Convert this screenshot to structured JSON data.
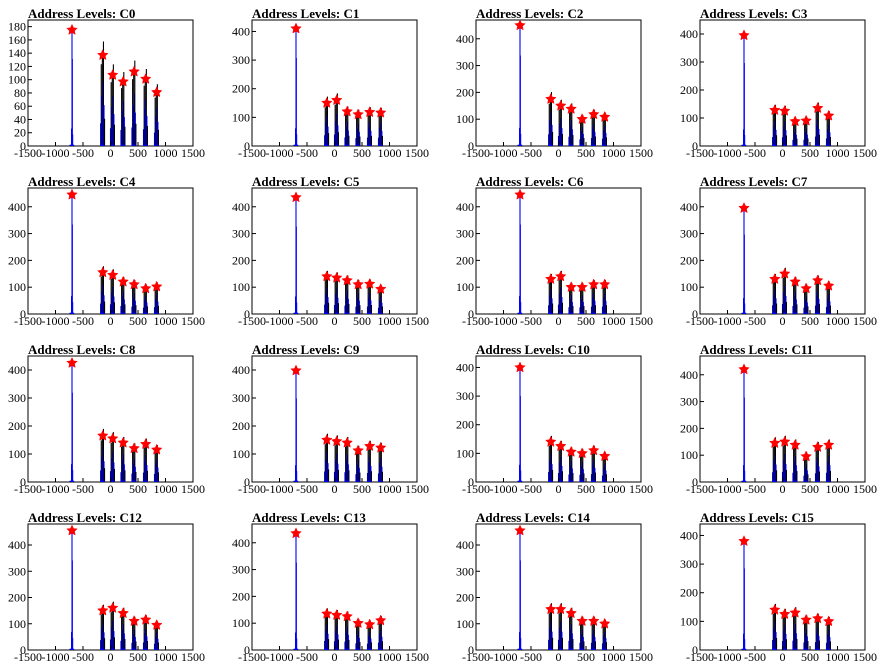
{
  "page": {
    "colors": {
      "background": "#ffffff",
      "spectrum": "#0000ff",
      "peak_marker": "#ff0000",
      "axis": "#000000"
    }
  },
  "chart_data": [
    {
      "type": "histogram",
      "title": "Address Levels: C0",
      "xlim": [
        -1500,
        1500
      ],
      "ylim": [
        0,
        190
      ],
      "x_ticks": [
        "-1500",
        "-1000",
        "-500",
        "0",
        "500",
        "1000",
        "1500"
      ],
      "y_ticks": [
        "0",
        "20",
        "40",
        "60",
        "80",
        "100",
        "120",
        "140",
        "160",
        "180"
      ],
      "peaks": [
        {
          "x": -700,
          "y": 175
        },
        {
          "x": -140,
          "y": 137
        },
        {
          "x": 40,
          "y": 107
        },
        {
          "x": 230,
          "y": 97
        },
        {
          "x": 430,
          "y": 112
        },
        {
          "x": 640,
          "y": 101
        },
        {
          "x": 840,
          "y": 81
        }
      ]
    },
    {
      "type": "histogram",
      "title": "Address Levels: C1",
      "xlim": [
        -1500,
        1500
      ],
      "ylim": [
        0,
        440
      ],
      "x_ticks": [
        "-1500",
        "-1000",
        "-500",
        "0",
        "500",
        "1000",
        "1500"
      ],
      "y_ticks": [
        "0",
        "100",
        "200",
        "300",
        "400"
      ],
      "peaks": [
        {
          "x": -700,
          "y": 410
        },
        {
          "x": -140,
          "y": 150
        },
        {
          "x": 40,
          "y": 160
        },
        {
          "x": 230,
          "y": 120
        },
        {
          "x": 430,
          "y": 110
        },
        {
          "x": 640,
          "y": 118
        },
        {
          "x": 840,
          "y": 116
        }
      ]
    },
    {
      "type": "histogram",
      "title": "Address Levels: C2",
      "xlim": [
        -1500,
        1500
      ],
      "ylim": [
        0,
        470
      ],
      "x_ticks": [
        "-1500",
        "-1000",
        "-500",
        "0",
        "500",
        "1000",
        "1500"
      ],
      "y_ticks": [
        "0",
        "100",
        "200",
        "300",
        "400"
      ],
      "peaks": [
        {
          "x": -700,
          "y": 450
        },
        {
          "x": -140,
          "y": 175
        },
        {
          "x": 40,
          "y": 150
        },
        {
          "x": 230,
          "y": 138
        },
        {
          "x": 430,
          "y": 100
        },
        {
          "x": 640,
          "y": 118
        },
        {
          "x": 840,
          "y": 108
        }
      ]
    },
    {
      "type": "histogram",
      "title": "Address Levels: C3",
      "xlim": [
        -1500,
        1500
      ],
      "ylim": [
        0,
        450
      ],
      "x_ticks": [
        "-1500",
        "-1000",
        "-500",
        "0",
        "500",
        "1000",
        "1500"
      ],
      "y_ticks": [
        "0",
        "100",
        "200",
        "300",
        "400"
      ],
      "peaks": [
        {
          "x": -700,
          "y": 395
        },
        {
          "x": -140,
          "y": 128
        },
        {
          "x": 40,
          "y": 125
        },
        {
          "x": 230,
          "y": 88
        },
        {
          "x": 430,
          "y": 90
        },
        {
          "x": 640,
          "y": 135
        },
        {
          "x": 840,
          "y": 108
        }
      ]
    },
    {
      "type": "histogram",
      "title": "Address Levels: C4",
      "xlim": [
        -1500,
        1500
      ],
      "ylim": [
        0,
        470
      ],
      "x_ticks": [
        "-1500",
        "-1000",
        "-500",
        "0",
        "500",
        "1000",
        "1500"
      ],
      "y_ticks": [
        "0",
        "100",
        "200",
        "300",
        "400"
      ],
      "peaks": [
        {
          "x": -700,
          "y": 445
        },
        {
          "x": -140,
          "y": 155
        },
        {
          "x": 40,
          "y": 145
        },
        {
          "x": 230,
          "y": 120
        },
        {
          "x": 430,
          "y": 110
        },
        {
          "x": 640,
          "y": 95
        },
        {
          "x": 840,
          "y": 102
        }
      ]
    },
    {
      "type": "histogram",
      "title": "Address Levels: C5",
      "xlim": [
        -1500,
        1500
      ],
      "ylim": [
        0,
        470
      ],
      "x_ticks": [
        "-1500",
        "-1000",
        "-500",
        "0",
        "500",
        "1000",
        "1500"
      ],
      "y_ticks": [
        "0",
        "100",
        "200",
        "300",
        "400"
      ],
      "peaks": [
        {
          "x": -700,
          "y": 435
        },
        {
          "x": -140,
          "y": 140
        },
        {
          "x": 40,
          "y": 135
        },
        {
          "x": 230,
          "y": 125
        },
        {
          "x": 430,
          "y": 110
        },
        {
          "x": 640,
          "y": 112
        },
        {
          "x": 840,
          "y": 93
        }
      ]
    },
    {
      "type": "histogram",
      "title": "Address Levels: C6",
      "xlim": [
        -1500,
        1500
      ],
      "ylim": [
        0,
        470
      ],
      "x_ticks": [
        "-1500",
        "-1000",
        "-500",
        "0",
        "500",
        "1000",
        "1500"
      ],
      "y_ticks": [
        "0",
        "100",
        "200",
        "300",
        "400"
      ],
      "peaks": [
        {
          "x": -700,
          "y": 445
        },
        {
          "x": -140,
          "y": 130
        },
        {
          "x": 40,
          "y": 140
        },
        {
          "x": 230,
          "y": 100
        },
        {
          "x": 430,
          "y": 100
        },
        {
          "x": 640,
          "y": 110
        },
        {
          "x": 840,
          "y": 110
        }
      ]
    },
    {
      "type": "histogram",
      "title": "Address Levels: C7",
      "xlim": [
        -1500,
        1500
      ],
      "ylim": [
        0,
        470
      ],
      "x_ticks": [
        "-1500",
        "-1000",
        "-500",
        "0",
        "500",
        "1000",
        "1500"
      ],
      "y_ticks": [
        "0",
        "100",
        "200",
        "300",
        "400"
      ],
      "peaks": [
        {
          "x": -700,
          "y": 395
        },
        {
          "x": -140,
          "y": 130
        },
        {
          "x": 40,
          "y": 150
        },
        {
          "x": 230,
          "y": 120
        },
        {
          "x": 430,
          "y": 95
        },
        {
          "x": 640,
          "y": 125
        },
        {
          "x": 840,
          "y": 105
        }
      ]
    },
    {
      "type": "histogram",
      "title": "Address Levels: C8",
      "xlim": [
        -1500,
        1500
      ],
      "ylim": [
        0,
        450
      ],
      "x_ticks": [
        "-1500",
        "-1000",
        "-500",
        "0",
        "500",
        "1000",
        "1500"
      ],
      "y_ticks": [
        "0",
        "100",
        "200",
        "300",
        "400"
      ],
      "peaks": [
        {
          "x": -700,
          "y": 425
        },
        {
          "x": -140,
          "y": 165
        },
        {
          "x": 40,
          "y": 155
        },
        {
          "x": 230,
          "y": 140
        },
        {
          "x": 430,
          "y": 120
        },
        {
          "x": 640,
          "y": 135
        },
        {
          "x": 840,
          "y": 115
        }
      ]
    },
    {
      "type": "histogram",
      "title": "Address Levels: C9",
      "xlim": [
        -1500,
        1500
      ],
      "ylim": [
        0,
        450
      ],
      "x_ticks": [
        "-1500",
        "-1000",
        "-500",
        "0",
        "500",
        "1000",
        "1500"
      ],
      "y_ticks": [
        "0",
        "100",
        "200",
        "300",
        "400"
      ],
      "peaks": [
        {
          "x": -700,
          "y": 398
        },
        {
          "x": -140,
          "y": 150
        },
        {
          "x": 40,
          "y": 145
        },
        {
          "x": 230,
          "y": 140
        },
        {
          "x": 430,
          "y": 112
        },
        {
          "x": 640,
          "y": 128
        },
        {
          "x": 840,
          "y": 122
        }
      ]
    },
    {
      "type": "histogram",
      "title": "Address Levels: C10",
      "xlim": [
        -1500,
        1500
      ],
      "ylim": [
        0,
        440
      ],
      "x_ticks": [
        "-1500",
        "-1000",
        "-500",
        "0",
        "500",
        "1000",
        "1500"
      ],
      "y_ticks": [
        "0",
        "100",
        "200",
        "300",
        "400"
      ],
      "peaks": [
        {
          "x": -700,
          "y": 400
        },
        {
          "x": -140,
          "y": 140
        },
        {
          "x": 40,
          "y": 125
        },
        {
          "x": 230,
          "y": 105
        },
        {
          "x": 430,
          "y": 100
        },
        {
          "x": 640,
          "y": 110
        },
        {
          "x": 840,
          "y": 90
        }
      ]
    },
    {
      "type": "histogram",
      "title": "Address Levels: C11",
      "xlim": [
        -1500,
        1500
      ],
      "ylim": [
        0,
        470
      ],
      "x_ticks": [
        "-1500",
        "-1000",
        "-500",
        "0",
        "500",
        "1000",
        "1500"
      ],
      "y_ticks": [
        "0",
        "100",
        "200",
        "300",
        "400"
      ],
      "peaks": [
        {
          "x": -700,
          "y": 420
        },
        {
          "x": -140,
          "y": 145
        },
        {
          "x": 40,
          "y": 150
        },
        {
          "x": 230,
          "y": 138
        },
        {
          "x": 430,
          "y": 95
        },
        {
          "x": 640,
          "y": 130
        },
        {
          "x": 840,
          "y": 138
        }
      ]
    },
    {
      "type": "histogram",
      "title": "Address Levels: C12",
      "xlim": [
        -1500,
        1500
      ],
      "ylim": [
        0,
        480
      ],
      "x_ticks": [
        "-1500",
        "-1000",
        "-500",
        "0",
        "500",
        "1000",
        "1500"
      ],
      "y_ticks": [
        "0",
        "100",
        "200",
        "300",
        "400"
      ],
      "peaks": [
        {
          "x": -700,
          "y": 455
        },
        {
          "x": -140,
          "y": 150
        },
        {
          "x": 40,
          "y": 160
        },
        {
          "x": 230,
          "y": 140
        },
        {
          "x": 430,
          "y": 110
        },
        {
          "x": 640,
          "y": 115
        },
        {
          "x": 840,
          "y": 95
        }
      ]
    },
    {
      "type": "histogram",
      "title": "Address Levels: C13",
      "xlim": [
        -1500,
        1500
      ],
      "ylim": [
        0,
        470
      ],
      "x_ticks": [
        "-1500",
        "-1000",
        "-500",
        "0",
        "500",
        "1000",
        "1500"
      ],
      "y_ticks": [
        "0",
        "100",
        "200",
        "300",
        "400"
      ],
      "peaks": [
        {
          "x": -700,
          "y": 435
        },
        {
          "x": -140,
          "y": 135
        },
        {
          "x": 40,
          "y": 130
        },
        {
          "x": 230,
          "y": 125
        },
        {
          "x": 430,
          "y": 100
        },
        {
          "x": 640,
          "y": 95
        },
        {
          "x": 840,
          "y": 110
        }
      ]
    },
    {
      "type": "histogram",
      "title": "Address Levels: C14",
      "xlim": [
        -1500,
        1500
      ],
      "ylim": [
        0,
        480
      ],
      "x_ticks": [
        "-1500",
        "-1000",
        "-500",
        "0",
        "500",
        "1000",
        "1500"
      ],
      "y_ticks": [
        "0",
        "100",
        "200",
        "300",
        "400"
      ],
      "peaks": [
        {
          "x": -700,
          "y": 455
        },
        {
          "x": -140,
          "y": 155
        },
        {
          "x": 40,
          "y": 155
        },
        {
          "x": 230,
          "y": 140
        },
        {
          "x": 430,
          "y": 110
        },
        {
          "x": 640,
          "y": 110
        },
        {
          "x": 840,
          "y": 100
        }
      ]
    },
    {
      "type": "histogram",
      "title": "Address Levels: C15",
      "xlim": [
        -1500,
        1500
      ],
      "ylim": [
        0,
        440
      ],
      "x_ticks": [
        "-1500",
        "-1000",
        "-500",
        "0",
        "500",
        "1000",
        "1500"
      ],
      "y_ticks": [
        "0",
        "100",
        "200",
        "300",
        "400"
      ],
      "peaks": [
        {
          "x": -700,
          "y": 380
        },
        {
          "x": -140,
          "y": 140
        },
        {
          "x": 40,
          "y": 125
        },
        {
          "x": 230,
          "y": 130
        },
        {
          "x": 430,
          "y": 105
        },
        {
          "x": 640,
          "y": 110
        },
        {
          "x": 840,
          "y": 100
        }
      ]
    }
  ]
}
